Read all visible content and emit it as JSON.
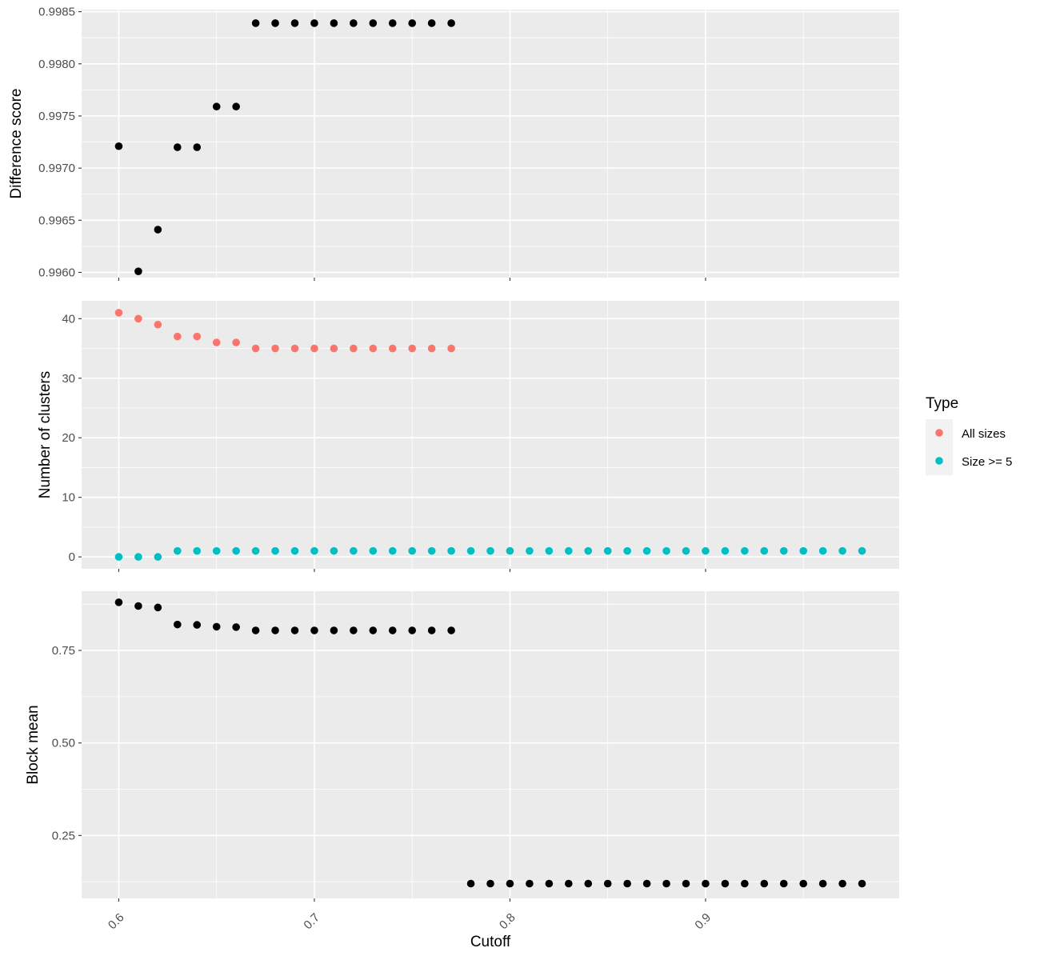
{
  "chart_data": {
    "type": "scatter",
    "xlabel": "Cutoff",
    "x_range": [
      0.581,
      0.999
    ],
    "x_ticks": [
      0.6,
      0.7,
      0.8,
      0.9
    ],
    "x_tick_labels": [
      "0.6",
      "0.7",
      "0.8",
      "0.9"
    ],
    "x": [
      0.6,
      0.61,
      0.62,
      0.63,
      0.64,
      0.65,
      0.66,
      0.67,
      0.68,
      0.69,
      0.7,
      0.71,
      0.72,
      0.73,
      0.74,
      0.75,
      0.76,
      0.77,
      0.78,
      0.79,
      0.8,
      0.81,
      0.82,
      0.83,
      0.84,
      0.85,
      0.86,
      0.87,
      0.88,
      0.89,
      0.9,
      0.91,
      0.92,
      0.93,
      0.94,
      0.95,
      0.96,
      0.97,
      0.98
    ],
    "grid": true,
    "legend": {
      "title": "Type",
      "placement": "right",
      "entries": [
        {
          "label": "All sizes",
          "color": "#f8766d"
        },
        {
          "label": "Size >= 5",
          "color": "#00bfc4"
        }
      ]
    },
    "panels": [
      {
        "ylabel": "Difference score",
        "y_range": [
          0.99595,
          0.99852
        ],
        "y_ticks": [
          0.996,
          0.9965,
          0.997,
          0.9975,
          0.998,
          0.9985
        ],
        "y_tick_labels": [
          "0.9960",
          "0.9965",
          "0.9970",
          "0.9975",
          "0.9980",
          "0.9985"
        ],
        "series": [
          {
            "color": "#000000",
            "values": [
              0.99721,
              0.99601,
              0.99641,
              0.9972,
              0.9972,
              0.99759,
              0.99759,
              0.99839,
              0.99839,
              0.99839,
              0.99839,
              0.99839,
              0.99839,
              0.99839,
              0.99839,
              0.99839,
              0.99839,
              0.99839
            ]
          }
        ]
      },
      {
        "ylabel": "Number of clusters",
        "y_range": [
          -2,
          43
        ],
        "y_ticks": [
          0,
          10,
          20,
          30,
          40
        ],
        "y_tick_labels": [
          "0",
          "10",
          "20",
          "30",
          "40"
        ],
        "series": [
          {
            "name": "All sizes",
            "color": "#f8766d",
            "values": [
              41,
              40,
              39,
              37,
              37,
              36,
              36,
              35,
              35,
              35,
              35,
              35,
              35,
              35,
              35,
              35,
              35,
              35
            ]
          },
          {
            "name": "Size >= 5",
            "color": "#00bfc4",
            "values": [
              0,
              0,
              0,
              1,
              1,
              1,
              1,
              1,
              1,
              1,
              1,
              1,
              1,
              1,
              1,
              1,
              1,
              1,
              1,
              1,
              1,
              1,
              1,
              1,
              1,
              1,
              1,
              1,
              1,
              1,
              1,
              1,
              1,
              1,
              1,
              1,
              1,
              1,
              1
            ]
          }
        ]
      },
      {
        "ylabel": "Block mean",
        "y_range": [
          0.08,
          0.91
        ],
        "y_ticks": [
          0.25,
          0.5,
          0.75
        ],
        "y_tick_labels": [
          "0.25",
          "0.50",
          "0.75"
        ],
        "series": [
          {
            "color": "#000000",
            "values": [
              0.88,
              0.87,
              0.866,
              0.82,
              0.819,
              0.814,
              0.813,
              0.804,
              0.804,
              0.804,
              0.804,
              0.804,
              0.804,
              0.804,
              0.804,
              0.804,
              0.804,
              0.804,
              0.12,
              0.12,
              0.12,
              0.12,
              0.12,
              0.12,
              0.12,
              0.12,
              0.12,
              0.12,
              0.12,
              0.12,
              0.12,
              0.12,
              0.12,
              0.12,
              0.12,
              0.12,
              0.12,
              0.12,
              0.12
            ]
          }
        ]
      }
    ]
  }
}
